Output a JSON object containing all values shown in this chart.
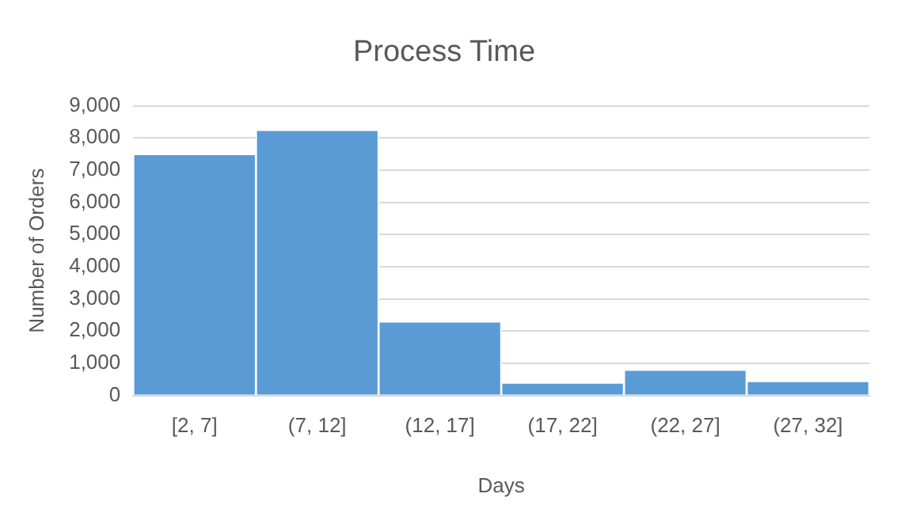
{
  "chart_data": {
    "type": "bar",
    "title": "Process Time",
    "xlabel": "Days",
    "ylabel": "Number of Orders",
    "categories": [
      "[2, 7]",
      "(7, 12]",
      "(12, 17]",
      "(17, 22]",
      "(22, 27]",
      "(27, 32]"
    ],
    "values": [
      7500,
      8250,
      2300,
      400,
      800,
      450
    ],
    "color": "#5b9bd5",
    "ylim": [
      0,
      9000
    ],
    "yticks": [
      {
        "value": 0,
        "label": "0"
      },
      {
        "value": 1000,
        "label": "1,000"
      },
      {
        "value": 2000,
        "label": "2,000"
      },
      {
        "value": 3000,
        "label": "3,000"
      },
      {
        "value": 4000,
        "label": "4,000"
      },
      {
        "value": 5000,
        "label": "5,000"
      },
      {
        "value": 6000,
        "label": "6,000"
      },
      {
        "value": 7000,
        "label": "7,000"
      },
      {
        "value": 8000,
        "label": "8,000"
      },
      {
        "value": 9000,
        "label": "9,000"
      }
    ],
    "grid": "y",
    "legend": false
  }
}
